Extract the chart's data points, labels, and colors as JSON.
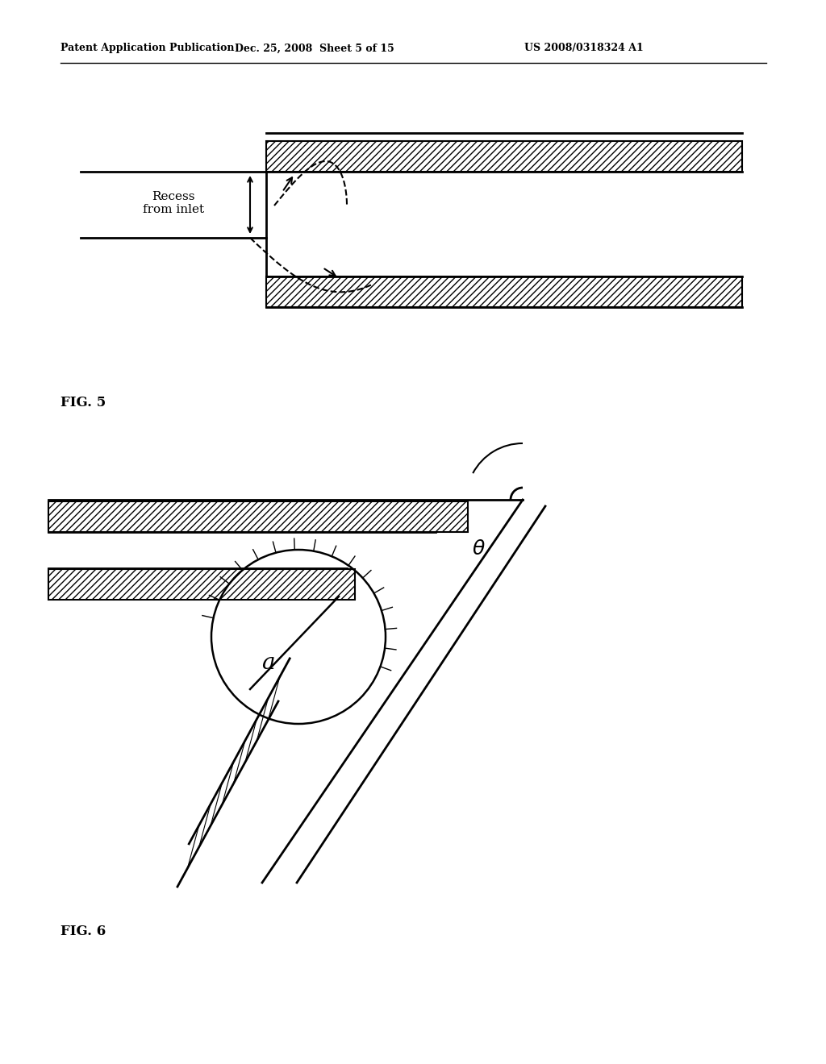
{
  "bg_color": "#ffffff",
  "line_color": "#000000",
  "header_left": "Patent Application Publication",
  "header_mid": "Dec. 25, 2008  Sheet 5 of 15",
  "header_right": "US 2008/0318324 A1",
  "fig5_label": "FIG. 5",
  "fig6_label": "FIG. 6",
  "recess_label": "Recess\nfrom inlet"
}
